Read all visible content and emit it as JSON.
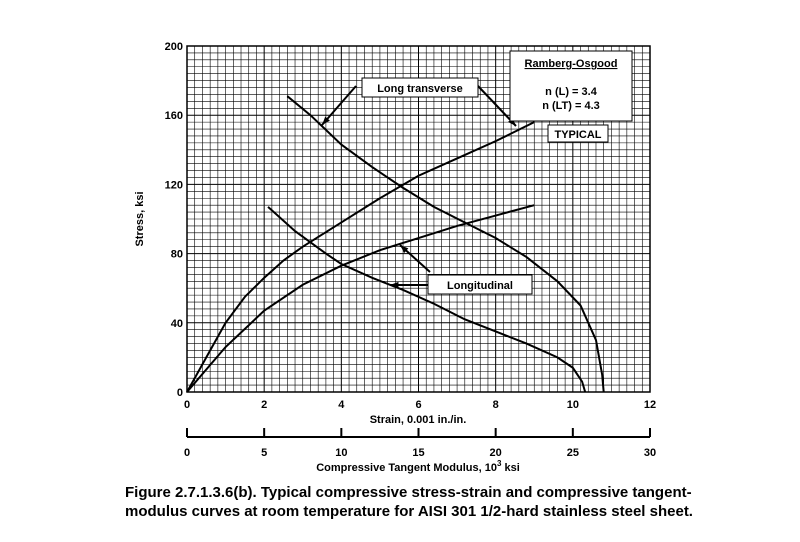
{
  "chart_data": {
    "type": "line",
    "ylabel": "Stress, ksi",
    "xlabel": "Strain, 0.001 in./in.",
    "x2label": [
      "Compressive Tangent Modulus, 10",
      "3",
      " ksi"
    ],
    "xlim": [
      0,
      12
    ],
    "xticks": [
      0,
      2,
      4,
      6,
      8,
      10,
      12
    ],
    "x2lim": [
      0,
      30
    ],
    "x2ticks": [
      0,
      5,
      10,
      15,
      20,
      25,
      30
    ],
    "ylim": [
      0,
      200
    ],
    "yticks": [
      0,
      40,
      80,
      120,
      160,
      200
    ],
    "grid": true,
    "minor_grid_divisions": {
      "x": 10,
      "y": 10
    },
    "color": "#000000",
    "series": [
      {
        "x": [
          0,
          0.5,
          1,
          1.5,
          2,
          2.5,
          3,
          4,
          5,
          6,
          7,
          8,
          9
        ],
        "values": [
          0,
          20,
          40,
          55,
          66,
          76,
          84,
          98,
          112,
          125,
          135,
          145,
          156
        ]
      },
      {
        "x": [
          0,
          0.5,
          1,
          2,
          3,
          4,
          5,
          6,
          7,
          8,
          9
        ],
        "values": [
          0,
          13,
          26,
          47,
          62,
          73,
          82,
          89,
          96,
          102,
          108
        ]
      },
      {
        "axis": "x2",
        "x": [
          6.5,
          8,
          10,
          12,
          14,
          16,
          18,
          20,
          22,
          24,
          25.5,
          26.5,
          26.9,
          27
        ],
        "values": [
          171,
          160,
          143,
          130,
          118,
          107,
          98,
          89,
          78,
          64,
          50,
          30,
          10,
          0
        ]
      },
      {
        "axis": "x2",
        "x": [
          5.25,
          7,
          9,
          10,
          12,
          14,
          16,
          18,
          20,
          22,
          24,
          25,
          25.6,
          25.8
        ],
        "values": [
          107,
          93,
          80,
          74,
          66,
          59,
          51,
          42,
          35,
          28,
          20,
          14,
          6,
          0
        ]
      }
    ],
    "annotations": [
      "Long transverse",
      "Longitudinal",
      "TYPICAL"
    ],
    "legend_box": {
      "title": "Ramberg-Osgood",
      "lines": [
        "n (L) = 3.4",
        "n (LT) = 4.3"
      ]
    },
    "caption": [
      "Figure 2.7.1.3.6(b).  Typical compressive stress-strain and compressive tangent-",
      "modulus curves at room temperature for AISI 301 1/2-hard stainless steel sheet."
    ]
  }
}
